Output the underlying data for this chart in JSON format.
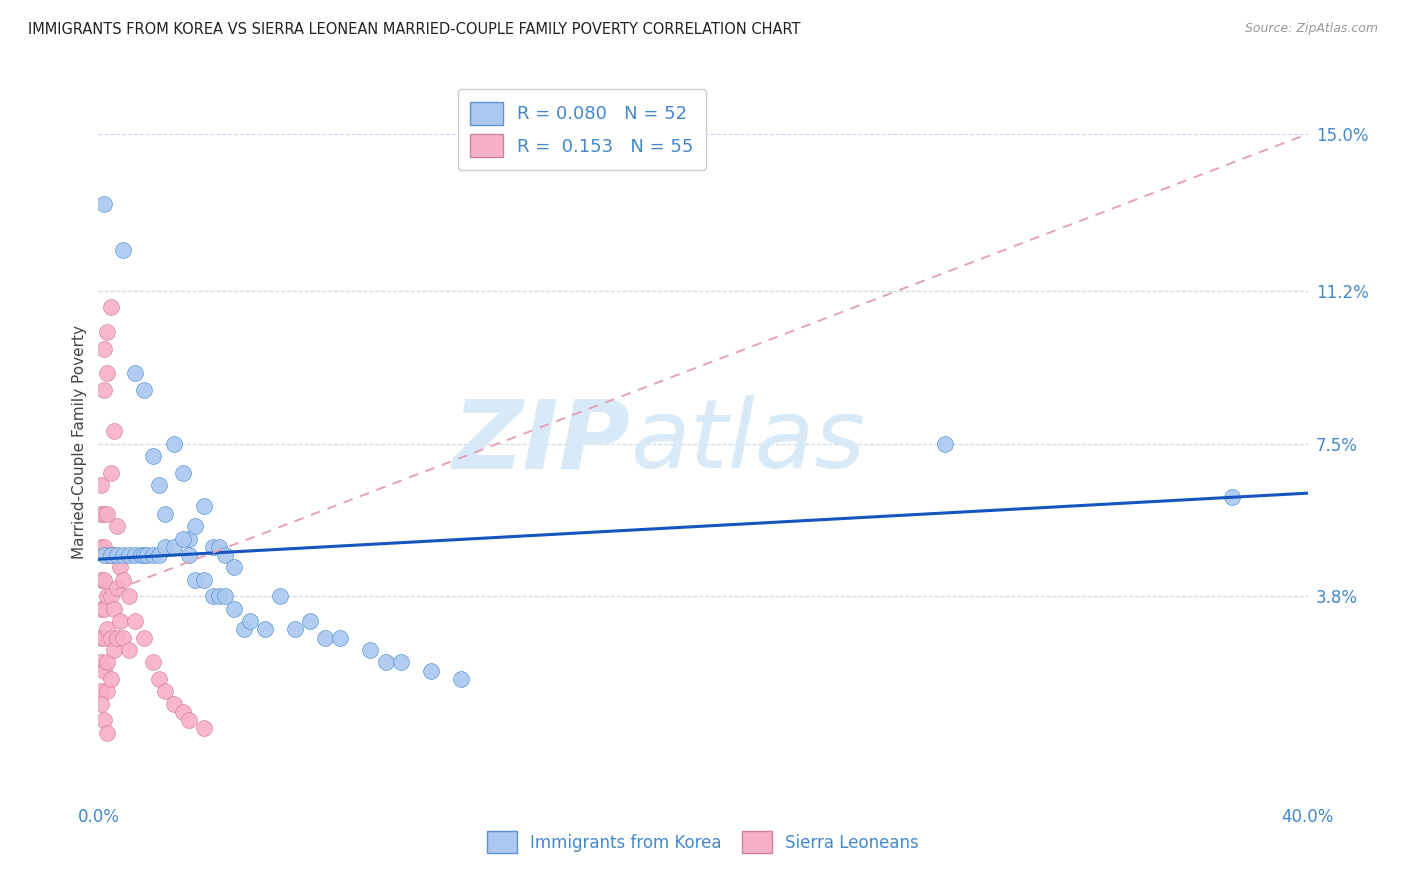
{
  "title": "IMMIGRANTS FROM KOREA VS SIERRA LEONEAN MARRIED-COUPLE FAMILY POVERTY CORRELATION CHART",
  "source": "Source: ZipAtlas.com",
  "ylabel": "Married-Couple Family Poverty",
  "ytick_labels": [
    "15.0%",
    "11.2%",
    "7.5%",
    "3.8%"
  ],
  "ytick_values": [
    0.15,
    0.112,
    0.075,
    0.038
  ],
  "xmin": 0.0,
  "xmax": 0.4,
  "ymin": -0.012,
  "ymax": 0.163,
  "legend_top": [
    {
      "label": "R = 0.080   N = 52",
      "color": "#aac8f0",
      "edge": "#6090d0"
    },
    {
      "label": "R =  0.153   N = 55",
      "color": "#f8b0c8",
      "edge": "#d08098"
    }
  ],
  "legend_bottom": [
    {
      "label": "Immigrants from Korea",
      "color": "#aac8f0",
      "edge": "#6090d0"
    },
    {
      "label": "Sierra Leoneans",
      "color": "#f8b0c8",
      "edge": "#d08098"
    }
  ],
  "korea_scatter": [
    [
      0.002,
      0.133
    ],
    [
      0.008,
      0.122
    ],
    [
      0.012,
      0.092
    ],
    [
      0.015,
      0.088
    ],
    [
      0.018,
      0.072
    ],
    [
      0.02,
      0.065
    ],
    [
      0.022,
      0.058
    ],
    [
      0.025,
      0.075
    ],
    [
      0.028,
      0.068
    ],
    [
      0.03,
      0.052
    ],
    [
      0.032,
      0.055
    ],
    [
      0.035,
      0.06
    ],
    [
      0.038,
      0.05
    ],
    [
      0.04,
      0.05
    ],
    [
      0.042,
      0.048
    ],
    [
      0.045,
      0.045
    ],
    [
      0.002,
      0.048
    ],
    [
      0.004,
      0.048
    ],
    [
      0.006,
      0.048
    ],
    [
      0.008,
      0.048
    ],
    [
      0.01,
      0.048
    ],
    [
      0.012,
      0.048
    ],
    [
      0.014,
      0.048
    ],
    [
      0.015,
      0.048
    ],
    [
      0.016,
      0.048
    ],
    [
      0.018,
      0.048
    ],
    [
      0.02,
      0.048
    ],
    [
      0.022,
      0.05
    ],
    [
      0.025,
      0.05
    ],
    [
      0.028,
      0.052
    ],
    [
      0.03,
      0.048
    ],
    [
      0.032,
      0.042
    ],
    [
      0.035,
      0.042
    ],
    [
      0.038,
      0.038
    ],
    [
      0.04,
      0.038
    ],
    [
      0.042,
      0.038
    ],
    [
      0.045,
      0.035
    ],
    [
      0.048,
      0.03
    ],
    [
      0.05,
      0.032
    ],
    [
      0.055,
      0.03
    ],
    [
      0.06,
      0.038
    ],
    [
      0.065,
      0.03
    ],
    [
      0.07,
      0.032
    ],
    [
      0.075,
      0.028
    ],
    [
      0.08,
      0.028
    ],
    [
      0.09,
      0.025
    ],
    [
      0.095,
      0.022
    ],
    [
      0.1,
      0.022
    ],
    [
      0.11,
      0.02
    ],
    [
      0.12,
      0.018
    ],
    [
      0.28,
      0.075
    ],
    [
      0.375,
      0.062
    ]
  ],
  "sierra_scatter": [
    [
      0.001,
      0.065
    ],
    [
      0.001,
      0.058
    ],
    [
      0.001,
      0.05
    ],
    [
      0.001,
      0.042
    ],
    [
      0.001,
      0.035
    ],
    [
      0.001,
      0.028
    ],
    [
      0.001,
      0.022
    ],
    [
      0.001,
      0.015
    ],
    [
      0.002,
      0.098
    ],
    [
      0.002,
      0.088
    ],
    [
      0.002,
      0.058
    ],
    [
      0.002,
      0.05
    ],
    [
      0.002,
      0.042
    ],
    [
      0.002,
      0.035
    ],
    [
      0.002,
      0.028
    ],
    [
      0.002,
      0.02
    ],
    [
      0.003,
      0.102
    ],
    [
      0.003,
      0.092
    ],
    [
      0.003,
      0.058
    ],
    [
      0.003,
      0.048
    ],
    [
      0.003,
      0.038
    ],
    [
      0.003,
      0.03
    ],
    [
      0.003,
      0.022
    ],
    [
      0.003,
      0.015
    ],
    [
      0.004,
      0.108
    ],
    [
      0.004,
      0.068
    ],
    [
      0.004,
      0.048
    ],
    [
      0.004,
      0.038
    ],
    [
      0.004,
      0.028
    ],
    [
      0.004,
      0.018
    ],
    [
      0.005,
      0.078
    ],
    [
      0.005,
      0.048
    ],
    [
      0.005,
      0.035
    ],
    [
      0.005,
      0.025
    ],
    [
      0.006,
      0.055
    ],
    [
      0.006,
      0.04
    ],
    [
      0.006,
      0.028
    ],
    [
      0.007,
      0.045
    ],
    [
      0.007,
      0.032
    ],
    [
      0.008,
      0.042
    ],
    [
      0.008,
      0.028
    ],
    [
      0.01,
      0.038
    ],
    [
      0.01,
      0.025
    ],
    [
      0.012,
      0.032
    ],
    [
      0.015,
      0.028
    ],
    [
      0.018,
      0.022
    ],
    [
      0.02,
      0.018
    ],
    [
      0.022,
      0.015
    ],
    [
      0.025,
      0.012
    ],
    [
      0.028,
      0.01
    ],
    [
      0.03,
      0.008
    ],
    [
      0.035,
      0.006
    ],
    [
      0.001,
      0.012
    ],
    [
      0.002,
      0.008
    ],
    [
      0.003,
      0.005
    ]
  ],
  "korea_line": {
    "x0": 0.0,
    "y0": 0.047,
    "x1": 0.4,
    "y1": 0.063
  },
  "sierra_line": {
    "x0": 0.0,
    "y0": 0.038,
    "x1": 0.4,
    "y1": 0.15
  },
  "korea_line_color": "#1555c0",
  "sierra_line_color": "#e8a0b8",
  "korea_scatter_color": "#aac8f0",
  "korea_edge_color": "#5090d0",
  "sierra_scatter_color": "#f8b0c8",
  "sierra_edge_color": "#d08098",
  "watermark_color": "#d8eaf8",
  "axis_label_color": "#4488cc",
  "title_color": "#222222",
  "source_color": "#999999",
  "grid_color": "#c8d8e8",
  "background_color": "#ffffff"
}
